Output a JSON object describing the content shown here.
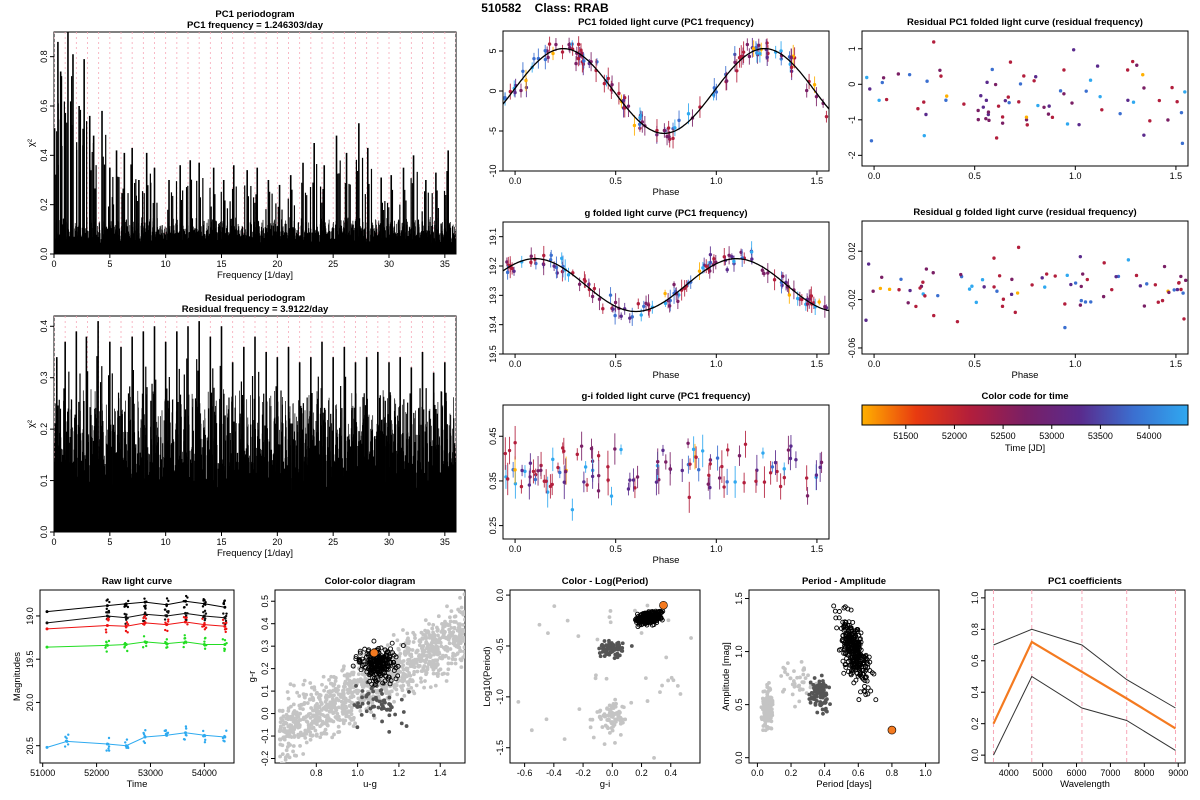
{
  "page_title": "510582    Class: RRAB",
  "chart_data": [
    {
      "id": "pc1_periodogram",
      "type": "line",
      "title": "PC1 periodogram",
      "subtitle": "PC1 frequency = 1.246303/day",
      "xlabel": "Frequency [1/day]",
      "ylabel": "χ²",
      "xlim": [
        0,
        36
      ],
      "ylim": [
        0,
        0.9
      ],
      "xticks": [
        0,
        5,
        10,
        15,
        20,
        25,
        30,
        35
      ],
      "yticks": [
        0.0,
        0.2,
        0.4,
        0.6,
        0.8
      ],
      "tick_labels_y": [
        "0.0",
        "0.2",
        "0.4",
        "0.6",
        "0.8"
      ],
      "peaks_x": [
        0.05,
        0.35,
        0.6,
        1.25,
        1.7,
        2.25,
        2.7,
        3.2,
        3.55,
        4.3,
        5.0,
        5.6,
        6.3,
        7.0,
        7.6,
        8.3,
        9.0,
        10.3,
        11.3,
        12.2,
        13.0,
        14.3,
        15.2,
        16.1,
        17.3,
        18.2,
        19.2,
        20.2,
        21.2,
        22.3,
        23.3,
        24.2,
        25.3,
        26.2,
        27.3,
        28.1,
        29.3,
        30.2,
        31.3,
        32.2,
        33.3,
        34.2,
        35.3
      ],
      "peaks_y": [
        0.51,
        0.86,
        0.74,
        0.9,
        0.81,
        0.6,
        0.79,
        0.56,
        0.48,
        0.58,
        0.35,
        0.42,
        0.41,
        0.43,
        0.3,
        0.41,
        0.35,
        0.3,
        0.36,
        0.38,
        0.37,
        0.35,
        0.3,
        0.36,
        0.34,
        0.35,
        0.3,
        0.28,
        0.32,
        0.37,
        0.45,
        0.36,
        0.48,
        0.41,
        0.53,
        0.43,
        0.31,
        0.32,
        0.35,
        0.4,
        0.3,
        0.33,
        0.42
      ],
      "noise_level": 0.15,
      "dashed_verticals": "pink, 1 per 1/day"
    },
    {
      "id": "residual_periodogram",
      "type": "line",
      "title": "Residual periodogram",
      "subtitle": "Residual frequency = 3.9122/day",
      "xlabel": "Frequency [1/day]",
      "ylabel": "χ²",
      "xlim": [
        0,
        36
      ],
      "ylim": [
        0,
        0.42
      ],
      "xticks": [
        0,
        5,
        10,
        15,
        20,
        25,
        30,
        35
      ],
      "yticks": [
        0.0,
        0.1,
        0.2,
        0.3,
        0.4
      ],
      "tick_labels_y": [
        "0.0",
        "0.1",
        "0.2",
        "0.3",
        "0.4"
      ],
      "peaks_x": [
        0.25,
        1.0,
        2.0,
        2.9,
        3.95,
        5.0,
        6.0,
        7.0,
        8.0,
        9.0,
        10.0,
        11.0,
        12.0,
        13.0,
        14.0,
        15.0,
        16.0,
        17.0,
        18.0,
        19.0,
        20.0,
        21.0,
        22.0,
        23.0,
        24.0,
        25.0,
        26.0,
        27.0,
        28.0,
        29.0,
        30.0,
        31.0,
        32.0,
        33.0,
        34.0,
        35.0
      ],
      "peaks_y": [
        0.34,
        0.37,
        0.39,
        0.38,
        0.41,
        0.37,
        0.36,
        0.38,
        0.39,
        0.4,
        0.37,
        0.39,
        0.4,
        0.41,
        0.38,
        0.4,
        0.33,
        0.36,
        0.38,
        0.35,
        0.34,
        0.36,
        0.33,
        0.34,
        0.37,
        0.34,
        0.36,
        0.33,
        0.34,
        0.35,
        0.33,
        0.34,
        0.32,
        0.35,
        0.31,
        0.33
      ],
      "noise_level": 0.28
    },
    {
      "id": "pc1_folded",
      "type": "scatter",
      "title": "PC1 folded light curve (PC1 frequency)",
      "xlabel": "Phase",
      "ylabel": "",
      "xlim": [
        -0.06,
        1.56
      ],
      "ylim": [
        -10,
        7.5
      ],
      "xticks": [
        0.0,
        0.5,
        1.0,
        1.5
      ],
      "tick_labels_x": [
        "0.0",
        "0.5",
        "1.0",
        "1.5"
      ],
      "yticks": [
        -10,
        -5,
        0,
        5
      ],
      "tick_labels_y": [
        "-10",
        "-5",
        "0",
        "5"
      ],
      "curve": {
        "mean": 0,
        "amp": 5.3,
        "peak_phase": 0.24,
        "shape": "asymmetric"
      },
      "n_points": 120,
      "errorbars": true
    },
    {
      "id": "residual_pc1_folded",
      "type": "scatter",
      "title": "Residual PC1 folded light curve (residual frequency)",
      "xlabel": "",
      "ylabel": "",
      "xlim": [
        -0.06,
        1.56
      ],
      "ylim": [
        -2.3,
        1.5
      ],
      "xticks": [
        0.0,
        0.5,
        1.0,
        1.5
      ],
      "tick_labels_x": [
        "0.0",
        "0.5",
        "1.0",
        "1.5"
      ],
      "yticks": [
        -2,
        -1,
        0,
        1
      ],
      "tick_labels_y": [
        "-2",
        "-1",
        "0",
        "1"
      ],
      "n_points": 82
    },
    {
      "id": "g_folded",
      "type": "scatter",
      "title": "g folded light curve (PC1 frequency)",
      "xlabel": "Phase",
      "ylabel": "",
      "xlim": [
        -0.06,
        1.56
      ],
      "ylim": [
        19.5,
        19.05
      ],
      "y_inverted": true,
      "xticks": [
        0.0,
        0.5,
        1.0,
        1.5
      ],
      "tick_labels_x": [
        "0.0",
        "0.5",
        "1.0",
        "1.5"
      ],
      "yticks": [
        19.1,
        19.2,
        19.3,
        19.4,
        19.5
      ],
      "tick_labels_y": [
        "19.1",
        "19.2",
        "19.3",
        "19.4",
        "19.5"
      ],
      "curve": {
        "mean": 19.265,
        "amp": 0.09,
        "peak_phase": 0.6
      },
      "n_points": 120,
      "errorbars": true
    },
    {
      "id": "residual_g_folded",
      "type": "scatter",
      "title": "Residual g folded light curve (residual frequency)",
      "xlabel": "Phase",
      "ylabel": "",
      "xlim": [
        -0.06,
        1.56
      ],
      "ylim": [
        -0.065,
        0.045
      ],
      "xticks": [
        0.0,
        0.5,
        1.0,
        1.5
      ],
      "tick_labels_x": [
        "0.0",
        "0.5",
        "1.0",
        "1.5"
      ],
      "yticks": [
        0.02,
        -0.02,
        -0.06
      ],
      "tick_labels_y": [
        "0.02",
        "-0.02",
        "-0.06"
      ],
      "n_points": 82
    },
    {
      "id": "gi_folded",
      "type": "scatter",
      "title": "g-i folded light curve (PC1 frequency)",
      "xlabel": "Phase",
      "ylabel": "",
      "xlim": [
        -0.06,
        1.56
      ],
      "ylim": [
        0.22,
        0.52
      ],
      "xticks": [
        0.0,
        0.5,
        1.0,
        1.5
      ],
      "tick_labels_x": [
        "0.0",
        "0.5",
        "1.0",
        "1.5"
      ],
      "yticks": [
        0.25,
        0.35,
        0.45
      ],
      "tick_labels_y": [
        "0.25",
        "0.35",
        "0.45"
      ],
      "n_points": 110,
      "errorbars": true
    },
    {
      "id": "color_code",
      "type": "heatmap",
      "title": "Color code for time",
      "xlabel": "Time [JD]",
      "xlim": [
        51050,
        54400
      ],
      "xticks": [
        51500,
        52000,
        52500,
        53000,
        53500,
        54000
      ],
      "tick_labels_x": [
        "51500",
        "52000",
        "52500",
        "53000",
        "53500",
        "54000"
      ],
      "gradient": [
        "#ffb000",
        "#e83a10",
        "#b21e3c",
        "#7a1f65",
        "#5a2a8c",
        "#3b6fd0",
        "#2fa8f0"
      ]
    },
    {
      "id": "raw_light_curve",
      "type": "line",
      "title": "Raw light curve",
      "xlabel": "Time",
      "ylabel": "Magnitudes",
      "xlim": [
        50950,
        54550
      ],
      "ylim": [
        20.7,
        18.7
      ],
      "y_inverted": true,
      "xticks": [
        51000,
        52000,
        53000,
        54000
      ],
      "tick_labels_x": [
        "51000",
        "52000",
        "53000",
        "54000"
      ],
      "yticks": [
        19.0,
        19.5,
        20.0,
        20.5
      ],
      "tick_labels_y": [
        "19.0",
        "19.5",
        "20.0",
        "20.5"
      ],
      "series": [
        {
          "color": "#000000",
          "x": [
            51080,
            52200,
            52550,
            52900,
            53300,
            53650,
            54000,
            54380
          ],
          "y": [
            18.95,
            18.88,
            18.86,
            18.84,
            18.87,
            18.83,
            18.86,
            18.9
          ]
        },
        {
          "color": "#101010",
          "x": [
            51080,
            52200,
            52550,
            52900,
            53300,
            53650,
            54000,
            54380
          ],
          "y": [
            19.08,
            19.0,
            19.02,
            18.98,
            19.0,
            18.97,
            19.0,
            19.02
          ]
        },
        {
          "color": "#ee1111",
          "x": [
            51080,
            52200,
            52550,
            52900,
            53300,
            53650,
            54000,
            54380
          ],
          "y": [
            19.15,
            19.11,
            19.12,
            19.08,
            19.1,
            19.07,
            19.1,
            19.12
          ]
        },
        {
          "color": "#22dd22",
          "x": [
            51080,
            52200,
            52550,
            52900,
            53300,
            53650,
            54000,
            54380
          ],
          "y": [
            19.36,
            19.34,
            19.33,
            19.3,
            19.32,
            19.3,
            19.33,
            19.33
          ]
        },
        {
          "color": "#2eaaf0",
          "x": [
            51080,
            51450,
            52200,
            52550,
            52900,
            53300,
            53650,
            54000,
            54380
          ],
          "y": [
            20.52,
            20.45,
            20.48,
            20.5,
            20.4,
            20.38,
            20.35,
            20.38,
            20.4
          ]
        }
      ]
    },
    {
      "id": "color_color",
      "type": "scatter",
      "title": "Color-color diagram",
      "xlabel": "u-g",
      "ylabel": "g-r",
      "xlim": [
        0.6,
        1.52
      ],
      "ylim": [
        -0.22,
        0.55
      ],
      "xticks": [
        0.8,
        1.0,
        1.2,
        1.4
      ],
      "tick_labels_x": [
        "0.8",
        "1.0",
        "1.2",
        "1.4"
      ],
      "yticks": [
        -0.2,
        -0.1,
        0.0,
        0.1,
        0.2,
        0.3,
        0.4,
        0.5
      ],
      "tick_labels_y": [
        "-0.2",
        "-0.1",
        "0.0",
        "0.1",
        "0.2",
        "0.3",
        "0.4",
        "0.5"
      ],
      "highlight": {
        "x": 1.08,
        "y": 0.27,
        "color": "#f47a20"
      }
    },
    {
      "id": "color_logperiod",
      "type": "scatter",
      "title": "Color - Log(Period)",
      "xlabel": "g-i",
      "ylabel": "Log10(Period)",
      "xlim": [
        -0.7,
        0.6
      ],
      "ylim": [
        -1.65,
        0.05
      ],
      "xticks": [
        -0.6,
        -0.4,
        -0.2,
        0.0,
        0.2,
        0.4
      ],
      "tick_labels_x": [
        "-0.6",
        "-0.4",
        "-0.2",
        "0.0",
        "0.2",
        "0.4"
      ],
      "yticks": [
        0.0,
        -0.5,
        -1.0,
        -1.5
      ],
      "tick_labels_y": [
        "0.0",
        "-0.5",
        "-1.0",
        "-1.5"
      ],
      "highlight": {
        "x": 0.35,
        "y": -0.1,
        "color": "#f47a20"
      }
    },
    {
      "id": "period_amplitude",
      "type": "scatter",
      "title": "Period - Amplitude",
      "xlabel": "Period [days]",
      "ylabel": "Amplitude [mag]",
      "xlim": [
        -0.05,
        1.08
      ],
      "ylim": [
        -0.05,
        1.58
      ],
      "xticks": [
        0.0,
        0.2,
        0.4,
        0.6,
        0.8,
        1.0
      ],
      "tick_labels_x": [
        "0.0",
        "0.2",
        "0.4",
        "0.6",
        "0.8",
        "1.0"
      ],
      "yticks": [
        0.0,
        0.5,
        1.0,
        1.5
      ],
      "tick_labels_y": [
        "0.0",
        "0.5",
        "1.0",
        "1.5"
      ],
      "highlight": {
        "x": 0.8,
        "y": 0.26,
        "color": "#f47a20"
      }
    },
    {
      "id": "pc1_coefficients",
      "type": "line",
      "title": "PC1 coefficients",
      "xlabel": "Wavelength",
      "ylabel": "",
      "xlim": [
        3300,
        9200
      ],
      "ylim": [
        -0.05,
        1.05
      ],
      "xticks": [
        4000,
        5000,
        6000,
        7000,
        8000,
        9000
      ],
      "tick_labels_x": [
        "4000",
        "5000",
        "6000",
        "7000",
        "8000",
        "9000"
      ],
      "yticks": [
        0.0,
        0.2,
        0.4,
        0.6,
        0.8,
        1.0
      ],
      "tick_labels_y": [
        "0.0",
        "0.2",
        "0.4",
        "0.6",
        "0.8",
        "1.0"
      ],
      "x": [
        3550,
        4680,
        6160,
        7480,
        8920
      ],
      "series": [
        {
          "color": "#f47a20",
          "values": [
            0.2,
            0.72,
            0.53,
            0.36,
            0.17
          ]
        },
        {
          "color": "#333333",
          "values": [
            0.7,
            0.8,
            0.7,
            0.48,
            0.3
          ]
        },
        {
          "color": "#333333",
          "values": [
            0.0,
            0.5,
            0.3,
            0.22,
            0.03
          ]
        }
      ],
      "dashed_verticals": [
        3550,
        4680,
        6160,
        7480,
        8920
      ]
    }
  ]
}
